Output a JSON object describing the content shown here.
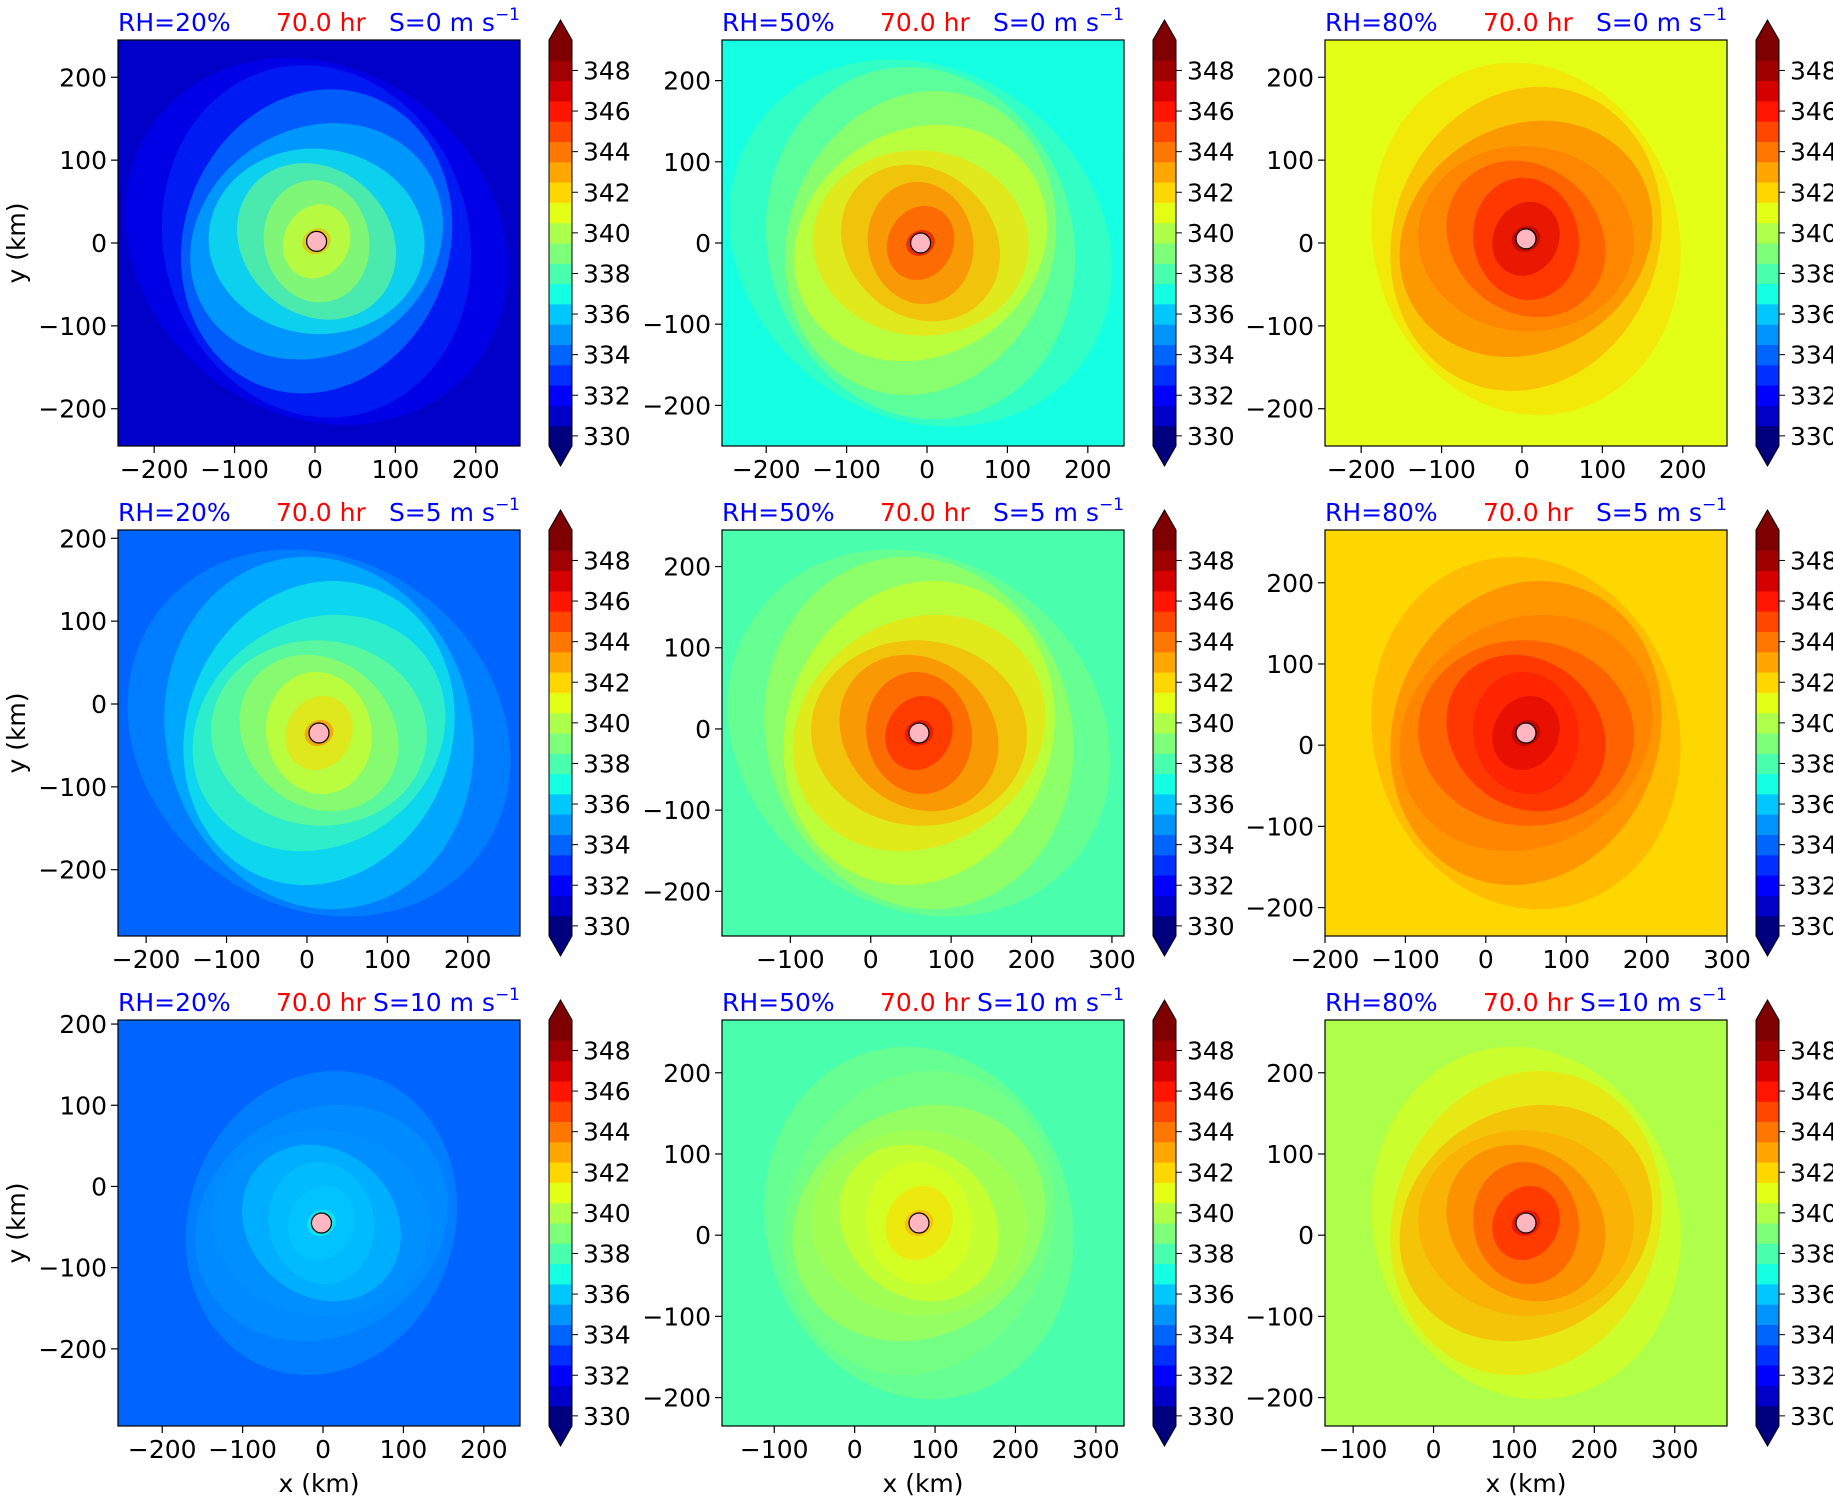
{
  "figure": {
    "colors": {
      "blue_label": "#0000ff",
      "red_label": "#ff0000"
    },
    "ylabel": "y (km)",
    "xlabel": "x (km)"
  },
  "colorbar": {
    "tick_labels": [
      "330",
      "332",
      "334",
      "336",
      "338",
      "340",
      "342",
      "344",
      "346",
      "348"
    ],
    "levels_min": 330,
    "levels_max": 349,
    "colormap": [
      "#00007f",
      "#0000c8",
      "#0000ff",
      "#0030ff",
      "#0064ff",
      "#0094ff",
      "#00c8ff",
      "#15ffe2",
      "#49ffad",
      "#7dff7a",
      "#adff49",
      "#e2ff15",
      "#ffd700",
      "#ffa600",
      "#ff7700",
      "#ff4700",
      "#ff1500",
      "#d50000",
      "#a00000",
      "#7f0000"
    ]
  },
  "chart_data": [
    {
      "type": "heatmap",
      "rh_label": "RH=20%",
      "time_label": "70.0 hr",
      "shear_label": "S=0 m s",
      "shear_exp": "−1",
      "xlim": [
        -245,
        255
      ],
      "ylim": [
        -245,
        245
      ],
      "xticks": [
        "−200",
        "−100",
        "0",
        "100",
        "200"
      ],
      "xtick_vals": [
        -200,
        -100,
        0,
        100,
        200
      ],
      "yticks": [
        "−200",
        "−100",
        "0",
        "100",
        "200"
      ],
      "ytick_vals": [
        -200,
        -100,
        0,
        100,
        200
      ],
      "center": [
        2,
        2
      ],
      "background_theta": 331,
      "core_theta": 343
    },
    {
      "type": "heatmap",
      "rh_label": "RH=50%",
      "time_label": "70.0 hr",
      "shear_label": "S=0 m s",
      "shear_exp": "−1",
      "xlim": [
        -255,
        245
      ],
      "ylim": [
        -250,
        250
      ],
      "xticks": [
        "−200",
        "−100",
        "0",
        "100",
        "200"
      ],
      "xtick_vals": [
        -200,
        -100,
        0,
        100,
        200
      ],
      "yticks": [
        "−200",
        "−100",
        "0",
        "100",
        "200"
      ],
      "ytick_vals": [
        -200,
        -100,
        0,
        100,
        200
      ],
      "center": [
        -8,
        0
      ],
      "background_theta": 337,
      "core_theta": 347
    },
    {
      "type": "heatmap",
      "rh_label": "RH=80%",
      "time_label": "70.0 hr",
      "shear_label": "S=0 m s",
      "shear_exp": "−1",
      "xlim": [
        -245,
        255
      ],
      "ylim": [
        -245,
        245
      ],
      "xticks": [
        "−200",
        "−100",
        "0",
        "100",
        "200"
      ],
      "xtick_vals": [
        -200,
        -100,
        0,
        100,
        200
      ],
      "yticks": [
        "−200",
        "−100",
        "0",
        "100",
        "200"
      ],
      "ytick_vals": [
        -200,
        -100,
        0,
        100,
        200
      ],
      "center": [
        5,
        5
      ],
      "background_theta": 341,
      "core_theta": 348
    },
    {
      "type": "heatmap",
      "rh_label": "RH=20%",
      "time_label": "70.0 hr",
      "shear_label": "S=5 m s",
      "shear_exp": "−1",
      "xlim": [
        -235,
        265
      ],
      "ylim": [
        -280,
        210
      ],
      "xticks": [
        "−200",
        "−100",
        "0",
        "100",
        "200"
      ],
      "xtick_vals": [
        -200,
        -100,
        0,
        100,
        200
      ],
      "yticks": [
        "−200",
        "−100",
        "0",
        "100",
        "200"
      ],
      "ytick_vals": [
        -200,
        -100,
        0,
        100,
        200
      ],
      "center": [
        15,
        -35
      ],
      "background_theta": 334,
      "core_theta": 344
    },
    {
      "type": "heatmap",
      "rh_label": "RH=50%",
      "time_label": "70.0 hr",
      "shear_label": "S=5 m s",
      "shear_exp": "−1",
      "xlim": [
        -185,
        315
      ],
      "ylim": [
        -255,
        245
      ],
      "xticks": [
        "−100",
        "0",
        "100",
        "200",
        "300"
      ],
      "xtick_vals": [
        -100,
        0,
        100,
        200,
        300
      ],
      "yticks": [
        "−200",
        "−100",
        "0",
        "100",
        "200"
      ],
      "ytick_vals": [
        -200,
        -100,
        0,
        100,
        200
      ],
      "center": [
        60,
        -5
      ],
      "background_theta": 338,
      "core_theta": 347
    },
    {
      "type": "heatmap",
      "rh_label": "RH=80%",
      "time_label": "70.0 hr",
      "shear_label": "S=5 m s",
      "shear_exp": "−1",
      "xlim": [
        -200,
        300
      ],
      "ylim": [
        -235,
        265
      ],
      "xticks": [
        "−200",
        "−100",
        "0",
        "100",
        "200",
        "300"
      ],
      "xtick_vals": [
        -200,
        -100,
        0,
        100,
        200,
        300
      ],
      "yticks": [
        "−200",
        "−100",
        "0",
        "100",
        "200"
      ],
      "ytick_vals": [
        -200,
        -100,
        0,
        100,
        200
      ],
      "center": [
        50,
        15
      ],
      "background_theta": 342,
      "core_theta": 348
    },
    {
      "type": "heatmap",
      "rh_label": "RH=20%",
      "time_label": "70.0 hr",
      "shear_label": "S=10 m s",
      "shear_exp": "−1",
      "xlim": [
        -255,
        245
      ],
      "ylim": [
        -295,
        205
      ],
      "xticks": [
        "−200",
        "−100",
        "0",
        "100",
        "200"
      ],
      "xtick_vals": [
        -200,
        -100,
        0,
        100,
        200
      ],
      "yticks": [
        "−200",
        "−100",
        "0",
        "100",
        "200"
      ],
      "ytick_vals": [
        -200,
        -100,
        0,
        100,
        200
      ],
      "center": [
        -2,
        -45
      ],
      "background_theta": 334,
      "core_theta": 337
    },
    {
      "type": "heatmap",
      "rh_label": "RH=50%",
      "time_label": "70.0 hr",
      "shear_label": "S=10 m s",
      "shear_exp": "−1",
      "xlim": [
        -165,
        335
      ],
      "ylim": [
        -235,
        265
      ],
      "xticks": [
        "−100",
        "0",
        "100",
        "200",
        "300"
      ],
      "xtick_vals": [
        -100,
        0,
        100,
        200,
        300
      ],
      "yticks": [
        "−200",
        "−100",
        "0",
        "100",
        "200"
      ],
      "ytick_vals": [
        -200,
        -100,
        0,
        100,
        200
      ],
      "center": [
        80,
        15
      ],
      "background_theta": 338,
      "core_theta": 343
    },
    {
      "type": "heatmap",
      "rh_label": "RH=80%",
      "time_label": "70.0 hr",
      "shear_label": "S=10 m s",
      "shear_exp": "−1",
      "xlim": [
        -135,
        365
      ],
      "ylim": [
        -235,
        265
      ],
      "xticks": [
        "−100",
        "0",
        "100",
        "200",
        "300"
      ],
      "xtick_vals": [
        -100,
        0,
        100,
        200,
        300
      ],
      "yticks": [
        "−200",
        "−100",
        "0",
        "100",
        "200"
      ],
      "ytick_vals": [
        -200,
        -100,
        0,
        100,
        200
      ],
      "center": [
        115,
        15
      ],
      "background_theta": 340,
      "core_theta": 347
    }
  ]
}
